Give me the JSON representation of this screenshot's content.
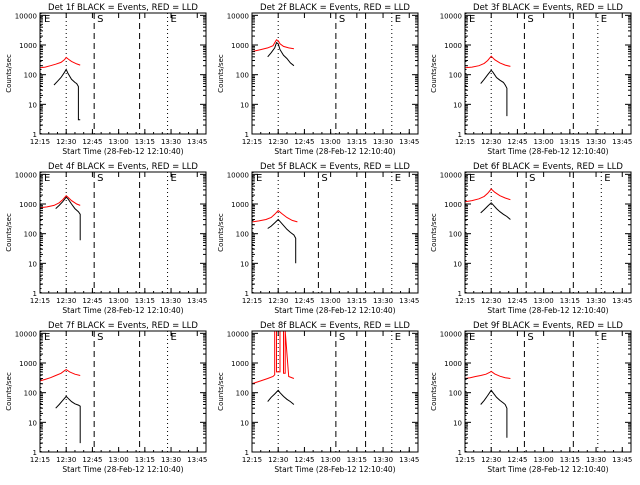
{
  "labels": {
    "ylabel": "Counts/sec",
    "xlabel": "Start Time (28-Feb-12 12:10:40)",
    "marker_e": "E",
    "marker_s": "S",
    "colors": {
      "events": "#000000",
      "lld": "#ff0000",
      "axis": "#000000"
    }
  },
  "chart_data": [
    {
      "type": "line",
      "detector": "1f",
      "title": "Det 1f BLACK = Events, RED = LLD",
      "yscale": "log",
      "ylim": [
        1,
        12000
      ],
      "xlim": [
        "12:15",
        "13:50"
      ],
      "xticks": [
        "12:15",
        "12:30",
        "12:45",
        "13:00",
        "13:15",
        "13:30",
        "13:45"
      ],
      "yticks": [
        "1",
        "10",
        "100",
        "1000",
        "10000"
      ],
      "markers": [
        {
          "label": "E",
          "time": "12:13",
          "style": "dotted"
        },
        {
          "label": "",
          "time": "12:30",
          "style": "dotted"
        },
        {
          "label": "S",
          "time": "12:46",
          "style": "dashed"
        },
        {
          "label": "",
          "time": "13:12",
          "style": "dashed"
        },
        {
          "label": "E",
          "time": "13:28",
          "style": "dotted"
        }
      ],
      "series": [
        {
          "name": "LLD",
          "color": "#ff0000",
          "x": [
            "12:15",
            "12:18",
            "12:21",
            "12:24",
            "12:27",
            "12:29",
            "12:30",
            "12:31",
            "12:33",
            "12:36",
            "12:38"
          ],
          "y": [
            170,
            180,
            200,
            225,
            260,
            320,
            380,
            340,
            280,
            230,
            210
          ]
        },
        {
          "name": "Events",
          "color": "#000000",
          "x": [
            "12:23",
            "12:25",
            "12:27",
            "12:29",
            "12:30",
            "12:31",
            "12:33",
            "12:35",
            "12:36",
            "12:37",
            "12:37",
            "12:38"
          ],
          "y": [
            45,
            60,
            80,
            120,
            150,
            110,
            70,
            55,
            50,
            40,
            3,
            3
          ]
        }
      ]
    },
    {
      "type": "line",
      "detector": "2f",
      "title": "Det 2f BLACK = Events, RED = LLD",
      "yscale": "log",
      "ylim": [
        1,
        12000
      ],
      "xlim": [
        "12:15",
        "13:50"
      ],
      "xticks": [
        "12:15",
        "12:30",
        "12:45",
        "13:00",
        "13:15",
        "13:30",
        "13:45"
      ],
      "yticks": [
        "1",
        "10",
        "100",
        "1000",
        "10000"
      ],
      "markers": [
        {
          "label": "",
          "time": "12:30",
          "style": "dotted"
        },
        {
          "label": "S",
          "time": "13:03",
          "style": "dashed"
        },
        {
          "label": "",
          "time": "13:20",
          "style": "dashed"
        },
        {
          "label": "E",
          "time": "13:35",
          "style": "dotted"
        }
      ],
      "series": [
        {
          "name": "LLD",
          "color": "#ff0000",
          "x": [
            "12:15",
            "12:20",
            "12:24",
            "12:27",
            "12:28",
            "12:29",
            "12:30",
            "12:31",
            "12:33",
            "12:36",
            "12:39"
          ],
          "y": [
            600,
            700,
            800,
            950,
            1200,
            1500,
            1400,
            1100,
            900,
            800,
            750
          ]
        },
        {
          "name": "Events",
          "color": "#000000",
          "x": [
            "12:24",
            "12:26",
            "12:28",
            "12:29",
            "12:30",
            "12:31",
            "12:33",
            "12:35",
            "12:37",
            "12:39"
          ],
          "y": [
            400,
            550,
            800,
            1200,
            1100,
            700,
            450,
            350,
            250,
            200
          ]
        }
      ]
    },
    {
      "type": "line",
      "detector": "3f",
      "title": "Det 3f BLACK = Events, RED = LLD",
      "yscale": "log",
      "ylim": [
        1,
        12000
      ],
      "xlim": [
        "12:15",
        "13:50"
      ],
      "xticks": [
        "12:15",
        "12:30",
        "12:45",
        "13:00",
        "13:15",
        "13:30",
        "13:45"
      ],
      "yticks": [
        "1",
        "10",
        "100",
        "1000",
        "10000"
      ],
      "markers": [
        {
          "label": "E",
          "time": "12:13",
          "style": "dotted"
        },
        {
          "label": "",
          "time": "12:30",
          "style": "dotted"
        },
        {
          "label": "S",
          "time": "12:49",
          "style": "dashed"
        },
        {
          "label": "",
          "time": "13:17",
          "style": "dashed"
        },
        {
          "label": "E",
          "time": "13:31",
          "style": "dotted"
        }
      ],
      "series": [
        {
          "name": "LLD",
          "color": "#ff0000",
          "x": [
            "12:15",
            "12:19",
            "12:23",
            "12:26",
            "12:28",
            "12:30",
            "12:32",
            "12:35",
            "12:38",
            "12:41"
          ],
          "y": [
            170,
            180,
            200,
            240,
            300,
            420,
            320,
            250,
            210,
            190
          ]
        },
        {
          "name": "Events",
          "color": "#000000",
          "x": [
            "12:24",
            "12:26",
            "12:28",
            "12:30",
            "12:31",
            "12:33",
            "12:35",
            "12:37",
            "12:38",
            "12:39",
            "12:39"
          ],
          "y": [
            50,
            70,
            100,
            140,
            120,
            80,
            65,
            55,
            45,
            35,
            4
          ]
        }
      ]
    },
    {
      "type": "line",
      "detector": "4f",
      "title": "Det 4f BLACK = Events, RED = LLD",
      "yscale": "log",
      "ylim": [
        1,
        12000
      ],
      "xlim": [
        "12:15",
        "13:50"
      ],
      "xticks": [
        "12:15",
        "12:30",
        "12:45",
        "13:00",
        "13:15",
        "13:30",
        "13:45"
      ],
      "yticks": [
        "1",
        "10",
        "100",
        "1000",
        "10000"
      ],
      "markers": [
        {
          "label": "E",
          "time": "12:13",
          "style": "dotted"
        },
        {
          "label": "",
          "time": "12:30",
          "style": "dotted"
        },
        {
          "label": "S",
          "time": "12:46",
          "style": "dashed"
        },
        {
          "label": "",
          "time": "13:12",
          "style": "dashed"
        },
        {
          "label": "E",
          "time": "13:28",
          "style": "dotted"
        }
      ],
      "series": [
        {
          "name": "LLD",
          "color": "#ff0000",
          "x": [
            "12:15",
            "12:19",
            "12:23",
            "12:26",
            "12:28",
            "12:30",
            "12:31",
            "12:33",
            "12:36",
            "12:38"
          ],
          "y": [
            750,
            800,
            900,
            1100,
            1400,
            1900,
            1700,
            1300,
            1000,
            900
          ]
        },
        {
          "name": "Events",
          "color": "#000000",
          "x": [
            "12:24",
            "12:26",
            "12:28",
            "12:30",
            "12:31",
            "12:33",
            "12:35",
            "12:37",
            "12:38",
            "12:38"
          ],
          "y": [
            700,
            900,
            1200,
            1700,
            1500,
            1000,
            700,
            550,
            450,
            60
          ]
        }
      ]
    },
    {
      "type": "line",
      "detector": "5f",
      "title": "Det 5f BLACK = Events, RED = LLD",
      "yscale": "log",
      "ylim": [
        1,
        12000
      ],
      "xlim": [
        "12:15",
        "13:50"
      ],
      "xticks": [
        "12:15",
        "12:30",
        "12:45",
        "13:00",
        "13:15",
        "13:30",
        "13:45"
      ],
      "yticks": [
        "1",
        "10",
        "100",
        "1000",
        "10000"
      ],
      "markers": [
        {
          "label": "E",
          "time": "12:13",
          "style": "dotted"
        },
        {
          "label": "",
          "time": "12:30",
          "style": "dotted"
        },
        {
          "label": "S",
          "time": "12:53",
          "style": "dashed"
        },
        {
          "label": "",
          "time": "13:20",
          "style": "dashed"
        },
        {
          "label": "E",
          "time": "13:35",
          "style": "dotted"
        }
      ],
      "series": [
        {
          "name": "LLD",
          "color": "#ff0000",
          "x": [
            "12:15",
            "12:19",
            "12:23",
            "12:26",
            "12:28",
            "12:30",
            "12:32",
            "12:35",
            "12:38",
            "12:41"
          ],
          "y": [
            250,
            270,
            300,
            350,
            450,
            600,
            480,
            350,
            280,
            250
          ]
        },
        {
          "name": "Events",
          "color": "#000000",
          "x": [
            "12:24",
            "12:26",
            "12:28",
            "12:30",
            "12:31",
            "12:33",
            "12:35",
            "12:37",
            "12:39",
            "12:40",
            "12:40"
          ],
          "y": [
            150,
            180,
            230,
            300,
            260,
            190,
            140,
            110,
            90,
            70,
            10
          ]
        }
      ]
    },
    {
      "type": "line",
      "detector": "6f",
      "title": "Det 6f BLACK = Events, RED = LLD",
      "yscale": "log",
      "ylim": [
        1,
        12000
      ],
      "xlim": [
        "12:15",
        "13:50"
      ],
      "xticks": [
        "12:15",
        "12:30",
        "12:45",
        "13:00",
        "13:15",
        "13:30",
        "13:45"
      ],
      "yticks": [
        "1",
        "10",
        "100",
        "1000",
        "10000"
      ],
      "markers": [
        {
          "label": "E",
          "time": "12:13",
          "style": "dotted"
        },
        {
          "label": "",
          "time": "12:30",
          "style": "dotted"
        },
        {
          "label": "S",
          "time": "12:50",
          "style": "dashed"
        },
        {
          "label": "",
          "time": "13:17",
          "style": "dashed"
        },
        {
          "label": "E",
          "time": "13:33",
          "style": "dotted"
        }
      ],
      "series": [
        {
          "name": "LLD",
          "color": "#ff0000",
          "x": [
            "12:15",
            "12:19",
            "12:23",
            "12:26",
            "12:28",
            "12:30",
            "12:32",
            "12:35",
            "12:38",
            "12:41"
          ],
          "y": [
            1200,
            1300,
            1500,
            1800,
            2300,
            3200,
            2500,
            1900,
            1600,
            1400
          ]
        },
        {
          "name": "Events",
          "color": "#000000",
          "x": [
            "12:24",
            "12:26",
            "12:28",
            "12:30",
            "12:31",
            "12:33",
            "12:35",
            "12:37",
            "12:39",
            "12:41"
          ],
          "y": [
            500,
            650,
            850,
            1100,
            950,
            700,
            550,
            450,
            380,
            300
          ]
        }
      ]
    },
    {
      "type": "line",
      "detector": "7f",
      "title": "Det 7f BLACK = Events, RED = LLD",
      "yscale": "log",
      "ylim": [
        1,
        12000
      ],
      "xlim": [
        "12:15",
        "13:50"
      ],
      "xticks": [
        "12:15",
        "12:30",
        "12:45",
        "13:00",
        "13:15",
        "13:30",
        "13:45"
      ],
      "yticks": [
        "1",
        "10",
        "100",
        "1000",
        "10000"
      ],
      "markers": [
        {
          "label": "E",
          "time": "12:13",
          "style": "dotted"
        },
        {
          "label": "",
          "time": "12:30",
          "style": "dotted"
        },
        {
          "label": "S",
          "time": "12:46",
          "style": "dashed"
        },
        {
          "label": "",
          "time": "13:12",
          "style": "dashed"
        },
        {
          "label": "E",
          "time": "13:28",
          "style": "dotted"
        }
      ],
      "series": [
        {
          "name": "LLD",
          "color": "#ff0000",
          "x": [
            "12:15",
            "12:18",
            "12:21",
            "12:24",
            "12:27",
            "12:29",
            "12:30",
            "12:32",
            "12:35",
            "12:38"
          ],
          "y": [
            250,
            280,
            320,
            380,
            450,
            550,
            600,
            500,
            420,
            380
          ]
        },
        {
          "name": "Events",
          "color": "#000000",
          "x": [
            "12:24",
            "12:26",
            "12:28",
            "12:30",
            "12:31",
            "12:33",
            "12:35",
            "12:37",
            "12:38",
            "12:38"
          ],
          "y": [
            30,
            40,
            55,
            75,
            65,
            50,
            42,
            38,
            35,
            2
          ]
        }
      ]
    },
    {
      "type": "line",
      "detector": "8f",
      "title": "Det 8f BLACK = Events, RED = LLD",
      "yscale": "log",
      "ylim": [
        1,
        12000
      ],
      "xlim": [
        "12:15",
        "13:50"
      ],
      "xticks": [
        "12:15",
        "12:30",
        "12:45",
        "13:00",
        "13:15",
        "13:30",
        "13:45"
      ],
      "yticks": [
        "1",
        "10",
        "100",
        "1000",
        "10000"
      ],
      "markers": [
        {
          "label": "",
          "time": "12:30",
          "style": "dotted"
        },
        {
          "label": "S",
          "time": "13:03",
          "style": "dashed"
        },
        {
          "label": "",
          "time": "13:20",
          "style": "dashed"
        },
        {
          "label": "E",
          "time": "13:35",
          "style": "dotted"
        }
      ],
      "series": [
        {
          "name": "LLD",
          "color": "#ff0000",
          "x": [
            "12:15",
            "12:20",
            "12:24",
            "12:27",
            "12:28",
            "12:28",
            "12:29",
            "12:29",
            "12:31",
            "12:31",
            "12:33",
            "12:33",
            "12:34",
            "12:34",
            "12:36",
            "12:39"
          ],
          "y": [
            200,
            250,
            300,
            350,
            400,
            12000,
            12000,
            500,
            500,
            12000,
            12000,
            450,
            450,
            12000,
            350,
            300
          ]
        },
        {
          "name": "Events",
          "color": "#000000",
          "x": [
            "12:24",
            "12:26",
            "12:28",
            "12:30",
            "12:31",
            "12:33",
            "12:35",
            "12:37",
            "12:39"
          ],
          "y": [
            50,
            70,
            90,
            120,
            100,
            75,
            60,
            50,
            40
          ]
        }
      ]
    },
    {
      "type": "line",
      "detector": "9f",
      "title": "Det 9f BLACK = Events, RED = LLD",
      "yscale": "log",
      "ylim": [
        1,
        12000
      ],
      "xlim": [
        "12:15",
        "13:50"
      ],
      "xticks": [
        "12:15",
        "12:30",
        "12:45",
        "13:00",
        "13:15",
        "13:30",
        "13:45"
      ],
      "yticks": [
        "1",
        "10",
        "100",
        "1000",
        "10000"
      ],
      "markers": [
        {
          "label": "E",
          "time": "12:13",
          "style": "dotted"
        },
        {
          "label": "",
          "time": "12:30",
          "style": "dotted"
        },
        {
          "label": "S",
          "time": "12:49",
          "style": "dashed"
        },
        {
          "label": "",
          "time": "13:17",
          "style": "dashed"
        },
        {
          "label": "E",
          "time": "13:31",
          "style": "dotted"
        }
      ],
      "series": [
        {
          "name": "LLD",
          "color": "#ff0000",
          "x": [
            "12:15",
            "12:18",
            "12:21",
            "12:24",
            "12:27",
            "12:29",
            "12:30",
            "12:32",
            "12:35",
            "12:38",
            "12:41"
          ],
          "y": [
            300,
            320,
            350,
            380,
            420,
            480,
            520,
            430,
            360,
            320,
            300
          ]
        },
        {
          "name": "Events",
          "color": "#000000",
          "x": [
            "12:24",
            "12:26",
            "12:28",
            "12:30",
            "12:31",
            "12:33",
            "12:35",
            "12:37",
            "12:38",
            "12:39",
            "12:39"
          ],
          "y": [
            40,
            55,
            80,
            120,
            100,
            70,
            55,
            45,
            40,
            30,
            3
          ]
        }
      ]
    }
  ]
}
